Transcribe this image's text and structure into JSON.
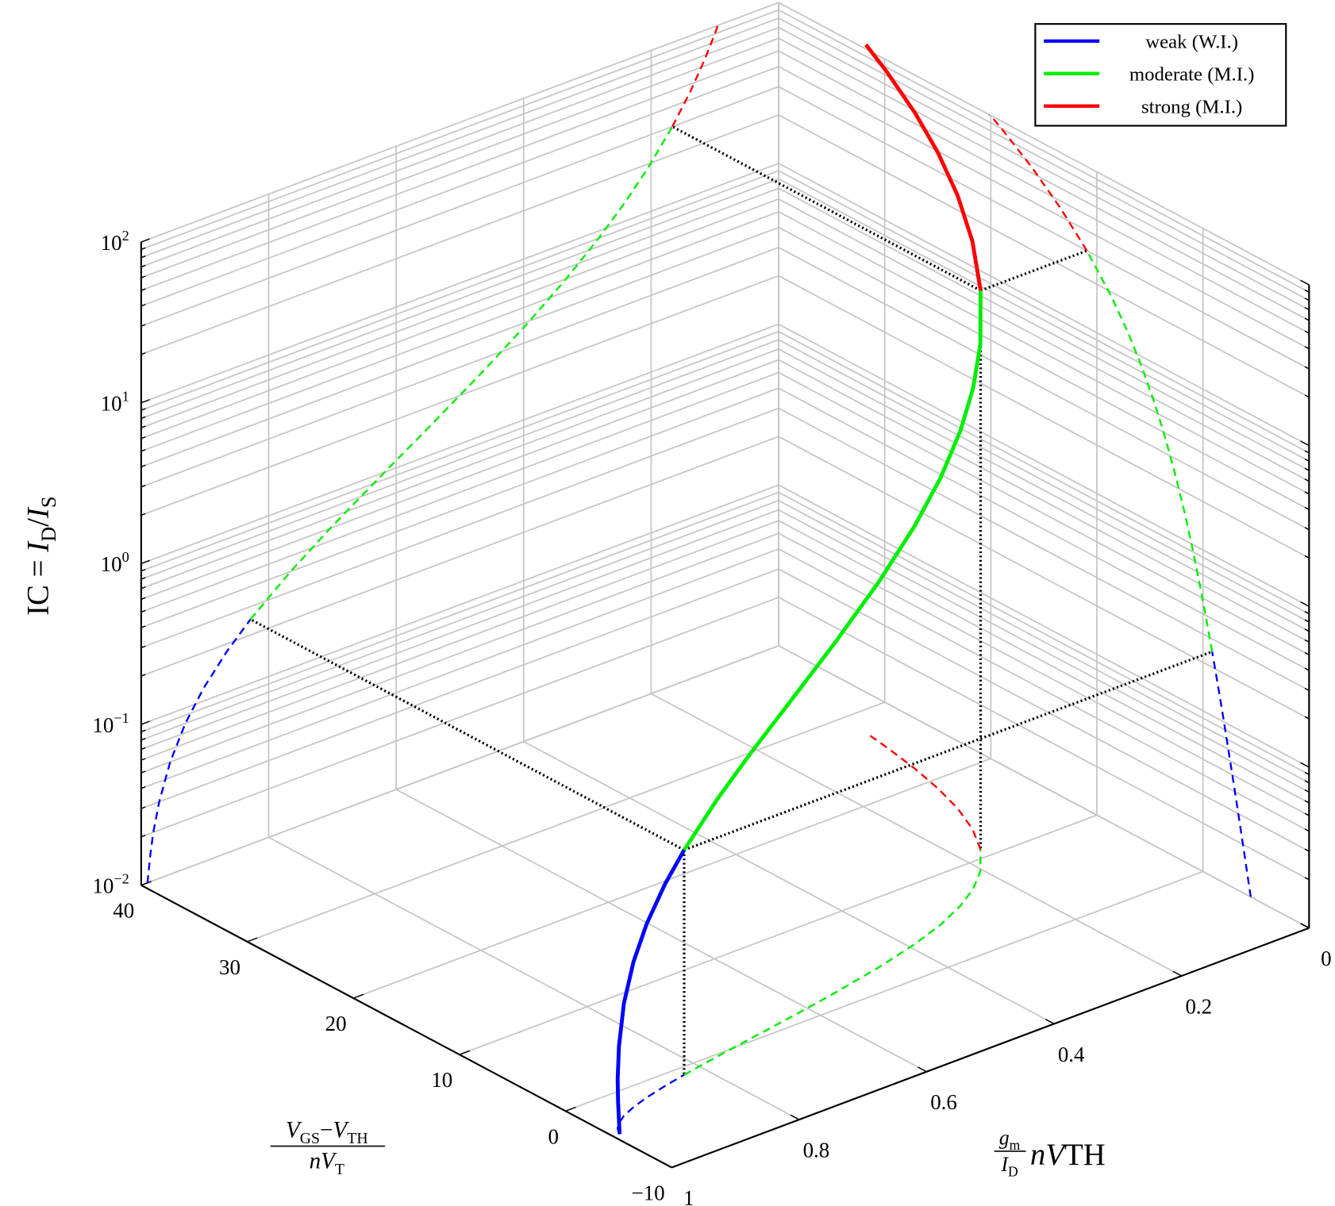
{
  "chart_data": {
    "type": "line3d",
    "zlabel": [
      [
        "IC = ",
        "n"
      ],
      [
        "I",
        "i"
      ],
      [
        "D",
        "s"
      ],
      [
        "/",
        "n"
      ],
      [
        "I",
        "i"
      ],
      [
        "S",
        "s"
      ]
    ],
    "xlabel": {
      "num": [
        [
          "V",
          "i"
        ],
        [
          "GS",
          "s"
        ],
        [
          "−",
          "n"
        ],
        [
          "V",
          "i"
        ],
        [
          "TH",
          "s"
        ]
      ],
      "den": [
        [
          "n",
          "i"
        ],
        [
          "V",
          "i"
        ],
        [
          "T",
          "s"
        ]
      ]
    },
    "ylabel": {
      "num": [
        [
          "g",
          "i"
        ],
        [
          "m",
          "s"
        ]
      ],
      "den": [
        [
          "I",
          "i"
        ],
        [
          "D",
          "s"
        ]
      ],
      "tail": [
        [
          "n",
          "i"
        ],
        [
          "V",
          "i"
        ],
        [
          "TH",
          "n"
        ]
      ]
    },
    "xlim": [
      -10,
      40
    ],
    "xticks": [
      {
        "value": -10,
        "label": "−10"
      },
      0,
      10,
      20,
      30,
      40
    ],
    "ylim": [
      0,
      1
    ],
    "yticks": [
      0,
      0.2,
      0.4,
      0.6,
      0.8,
      1
    ],
    "zlim": [
      0.01,
      100
    ],
    "zscale": "log",
    "zticks": [
      {
        "value": 0.01,
        "label": "10",
        "exponent": "−2"
      },
      {
        "value": 0.1,
        "label": "10",
        "exponent": "−1"
      },
      {
        "value": 1,
        "label": "10",
        "exponent": "0"
      },
      {
        "value": 10,
        "label": "10",
        "exponent": "1"
      },
      {
        "value": 100,
        "label": "10",
        "exponent": "2"
      }
    ],
    "zminorticks": [
      0.02,
      0.03,
      0.04,
      0.05,
      0.06,
      0.07,
      0.08,
      0.09,
      0.2,
      0.3,
      0.4,
      0.5,
      0.6,
      0.7,
      0.8,
      0.9,
      2,
      3,
      4,
      5,
      6,
      7,
      8,
      9,
      20,
      30,
      40,
      50,
      60,
      70,
      80,
      90
    ],
    "grid": true,
    "legend": "top-right",
    "series": [
      {
        "name": "weak (W.I.)",
        "color": "#0000ff",
        "z": [
          0.01,
          0.015,
          0.02,
          0.03,
          0.05,
          0.08,
          0.12,
          0.18,
          0.25
        ],
        "y": [
          0.9902,
          0.9854,
          0.981,
          0.9717,
          0.9545,
          0.9307,
          0.9023,
          0.8652,
          0.8284
        ],
        "x": [
          -4.504,
          -4.076,
          -3.769,
          -3.331,
          -2.768,
          -2.236,
          -1.764,
          -1.276,
          -0.865
        ]
      },
      {
        "name": "moderate (M.I.)",
        "color": "#00ee00",
        "z": [
          0.25,
          0.4,
          0.6,
          1,
          1.5,
          2.5,
          4,
          6,
          9,
          13,
          19,
          30
        ],
        "y": [
          0.8284,
          0.7656,
          0.7033,
          0.618,
          0.5486,
          0.4633,
          0.3904,
          0.3333,
          0.2824,
          0.2415,
          0.2046,
          0.1667
        ],
        "x": [
          -0.865,
          -0.25,
          0.314,
          1.083,
          1.754,
          2.702,
          3.709,
          4.718,
          5.898,
          7.156,
          8.692,
          10.946
        ]
      },
      {
        "name": "strong (M.I.)",
        "color": "#ff0000",
        "z": [
          30,
          45,
          65,
          90,
          120,
          160,
          190
        ],
        "y": [
          0.1667,
          0.1384,
          0.1166,
          0.1,
          0.0872,
          0.076,
          0.07
        ],
        "x": [
          10.946,
          13.414,
          16.124,
          18.974,
          21.909,
          25.298,
          27.568
        ]
      }
    ]
  }
}
